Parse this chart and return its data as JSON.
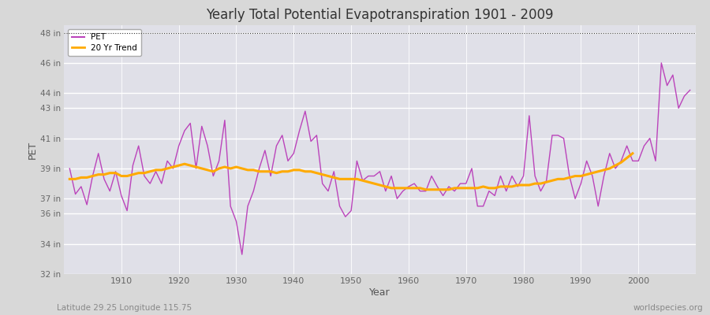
{
  "title": "Yearly Total Potential Evapotranspiration 1901 - 2009",
  "xlabel": "Year",
  "ylabel": "PET",
  "footer_left": "Latitude 29.25 Longitude 115.75",
  "footer_right": "worldspecies.org",
  "legend_pet": "PET",
  "legend_trend": "20 Yr Trend",
  "pet_color": "#bb44bb",
  "trend_color": "#ffaa00",
  "background_color": "#d8d8d8",
  "plot_bg_color": "#e0e0e8",
  "ylim": [
    32,
    48.5
  ],
  "yticks": [
    32,
    34,
    36,
    37,
    39,
    41,
    43,
    44,
    46,
    48
  ],
  "ytick_labels": [
    "32 in",
    "34 in",
    "36 in",
    "37 in",
    "39 in",
    "41 in",
    "43 in",
    "44 in",
    "46 in",
    "48 in"
  ],
  "xlim_min": 1900,
  "xlim_max": 2010,
  "years": [
    1901,
    1902,
    1903,
    1904,
    1905,
    1906,
    1907,
    1908,
    1909,
    1910,
    1911,
    1912,
    1913,
    1914,
    1915,
    1916,
    1917,
    1918,
    1919,
    1920,
    1921,
    1922,
    1923,
    1924,
    1925,
    1926,
    1927,
    1928,
    1929,
    1930,
    1931,
    1932,
    1933,
    1934,
    1935,
    1936,
    1937,
    1938,
    1939,
    1940,
    1941,
    1942,
    1943,
    1944,
    1945,
    1946,
    1947,
    1948,
    1949,
    1950,
    1951,
    1952,
    1953,
    1954,
    1955,
    1956,
    1957,
    1958,
    1959,
    1960,
    1961,
    1962,
    1963,
    1964,
    1965,
    1966,
    1967,
    1968,
    1969,
    1970,
    1971,
    1972,
    1973,
    1974,
    1975,
    1976,
    1977,
    1978,
    1979,
    1980,
    1981,
    1982,
    1983,
    1984,
    1985,
    1986,
    1987,
    1988,
    1989,
    1990,
    1991,
    1992,
    1993,
    1994,
    1995,
    1996,
    1997,
    1998,
    1999,
    2000,
    2001,
    2002,
    2003,
    2004,
    2005,
    2006,
    2007,
    2008,
    2009
  ],
  "pet_values": [
    39.0,
    37.3,
    37.8,
    36.6,
    38.5,
    40.0,
    38.3,
    37.5,
    38.8,
    37.2,
    36.2,
    39.2,
    40.5,
    38.5,
    38.0,
    38.8,
    38.0,
    39.5,
    39.0,
    40.5,
    41.5,
    42.0,
    39.0,
    41.8,
    40.5,
    38.5,
    39.5,
    42.2,
    36.5,
    35.5,
    33.3,
    36.5,
    37.5,
    39.0,
    40.2,
    38.5,
    40.5,
    41.2,
    39.5,
    40.0,
    41.5,
    42.8,
    40.8,
    41.2,
    38.0,
    37.5,
    38.8,
    36.5,
    35.8,
    36.2,
    39.5,
    38.2,
    38.5,
    38.5,
    38.8,
    37.5,
    38.5,
    37.0,
    37.5,
    37.8,
    38.0,
    37.5,
    37.5,
    38.5,
    37.8,
    37.2,
    37.8,
    37.5,
    38.0,
    38.0,
    39.0,
    36.5,
    36.5,
    37.5,
    37.2,
    38.5,
    37.5,
    38.5,
    37.8,
    38.5,
    42.5,
    38.5,
    37.5,
    38.2,
    41.2,
    41.2,
    41.0,
    38.5,
    37.0,
    38.0,
    39.5,
    38.5,
    36.5,
    38.5,
    40.0,
    39.0,
    39.5,
    40.5,
    39.5,
    39.5,
    40.5,
    41.0,
    39.5,
    46.0,
    44.5,
    45.2,
    43.0,
    43.8,
    44.2
  ],
  "trend_values": [
    38.3,
    38.3,
    38.4,
    38.4,
    38.5,
    38.6,
    38.6,
    38.7,
    38.7,
    38.5,
    38.5,
    38.6,
    38.7,
    38.7,
    38.8,
    38.9,
    38.9,
    39.0,
    39.1,
    39.2,
    39.3,
    39.2,
    39.1,
    39.0,
    38.9,
    38.8,
    39.0,
    39.1,
    39.0,
    39.1,
    39.0,
    38.9,
    38.9,
    38.8,
    38.8,
    38.8,
    38.7,
    38.8,
    38.8,
    38.9,
    38.9,
    38.8,
    38.8,
    38.7,
    38.6,
    38.5,
    38.4,
    38.3,
    38.3,
    38.3,
    38.3,
    38.2,
    38.1,
    38.0,
    37.9,
    37.8,
    37.7,
    37.7,
    37.7,
    37.7,
    37.7,
    37.7,
    37.6,
    37.6,
    37.6,
    37.6,
    37.6,
    37.7,
    37.7,
    37.7,
    37.7,
    37.7,
    37.8,
    37.7,
    37.7,
    37.8,
    37.8,
    37.8,
    37.9,
    37.9,
    37.9,
    38.0,
    38.0,
    38.1,
    38.2,
    38.3,
    38.3,
    38.4,
    38.5,
    38.5,
    38.6,
    38.7,
    38.8,
    38.9,
    39.0,
    39.2,
    39.4,
    39.7,
    40.0,
    null,
    null,
    null,
    null,
    null,
    null,
    null,
    null,
    null,
    null
  ]
}
